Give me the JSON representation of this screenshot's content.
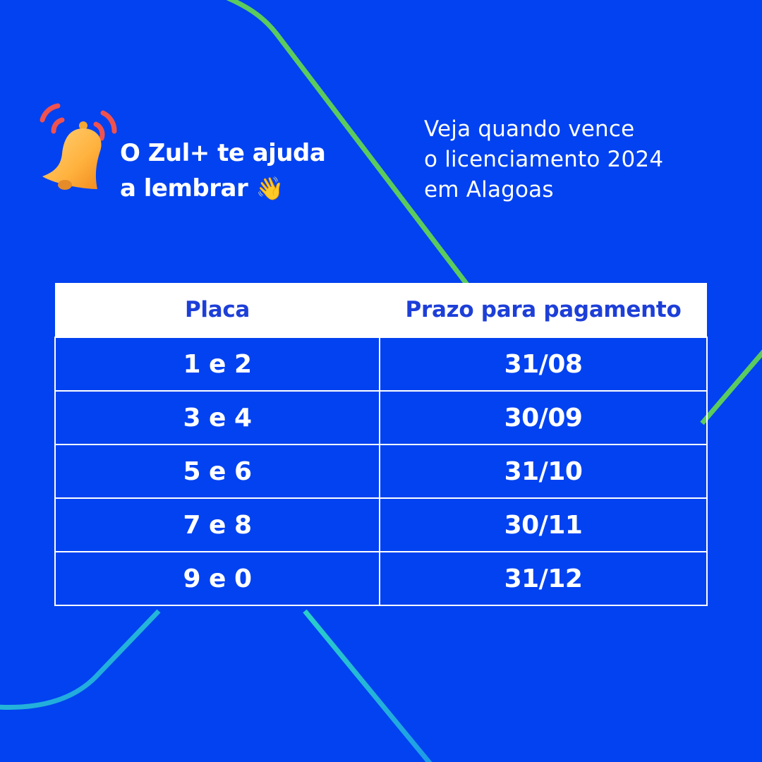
{
  "headline": {
    "line1": "O Zul+ te ajuda",
    "line2": "a lembrar",
    "wave_emoji": "👋"
  },
  "icons": {
    "bell": "bell-icon",
    "wave": "waving-hand-icon"
  },
  "subtitle": {
    "line1": "Veja quando vence",
    "line2": "o licenciamento 2024",
    "line3": "em Alagoas"
  },
  "table": {
    "headers": [
      "Placa",
      "Prazo para pagamento"
    ],
    "rows": [
      [
        "1 e 2",
        "31/08"
      ],
      [
        "3 e 4",
        "30/09"
      ],
      [
        "5 e 6",
        "31/10"
      ],
      [
        "7 e 8",
        "30/11"
      ],
      [
        "9 e 0",
        "31/12"
      ]
    ]
  },
  "colors": {
    "background": "#0242F0",
    "header_bg": "#ffffff",
    "header_text": "#1D3FD8",
    "accent_green": "#5BCB5E",
    "accent_cyan": "#1FB4E0"
  }
}
